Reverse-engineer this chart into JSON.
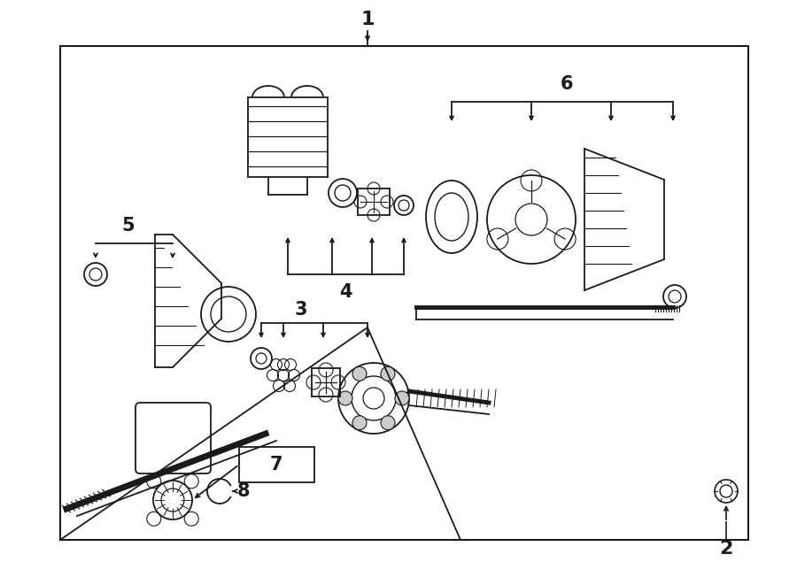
{
  "bg_color": "#ffffff",
  "line_color": "#1a1a1a",
  "fig_width": 9.0,
  "fig_height": 6.61,
  "dpi": 100,
  "pw": 900,
  "ph": 661
}
